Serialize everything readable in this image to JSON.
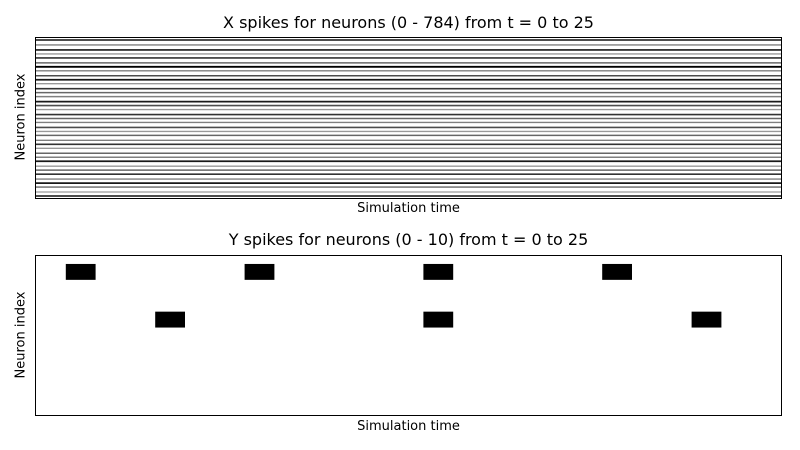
{
  "chart_data": [
    {
      "type": "raster",
      "title": "X spikes for neurons (0 - 784) from t = 0 to 25",
      "xlabel": "Simulation time",
      "ylabel": "Neuron index",
      "xticks": false,
      "yticks": false,
      "grid": false,
      "color": "#000000",
      "spike_rows": [
        0,
        5,
        10,
        14,
        18,
        23,
        27,
        31,
        36,
        40,
        44,
        49,
        53,
        57,
        62,
        66,
        70,
        75,
        79,
        83,
        88,
        92,
        96,
        101,
        105,
        109,
        114,
        118,
        122,
        127,
        131,
        135,
        140,
        144,
        148,
        153,
        157
      ],
      "row_intensity": [
        0.8,
        0.5,
        0.9,
        0.4,
        0.8,
        0.6,
        1.0,
        0.5,
        0.7,
        0.9,
        0.4,
        0.8,
        0.6,
        0.5,
        0.9,
        0.7,
        0.4,
        0.8,
        0.6,
        0.5,
        0.7,
        0.4,
        0.6,
        0.5,
        0.8,
        0.4,
        0.6,
        0.5,
        0.9,
        0.4,
        0.6,
        0.8,
        0.5,
        0.9,
        0.6,
        0.4,
        0.8
      ]
    },
    {
      "type": "raster",
      "title": "Y spikes for neurons (0 - 10) from t = 0 to 25",
      "xlabel": "Simulation time",
      "ylabel": "Neuron index",
      "xticks": false,
      "yticks": false,
      "grid": false,
      "color": "#000000",
      "xlim": [
        0,
        25
      ],
      "ylim": [
        10,
        0
      ],
      "spikes": [
        {
          "t": 1,
          "neuron": 1
        },
        {
          "t": 7,
          "neuron": 1
        },
        {
          "t": 13,
          "neuron": 1
        },
        {
          "t": 19,
          "neuron": 1
        },
        {
          "t": 4,
          "neuron": 4
        },
        {
          "t": 13,
          "neuron": 4
        },
        {
          "t": 22,
          "neuron": 4
        }
      ]
    }
  ]
}
